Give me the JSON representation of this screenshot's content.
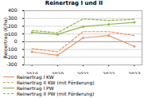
{
  "chart_data": {
    "type": "line",
    "title": "Reinertrag I und II",
    "ylabel": "Reinertrag (€/ha)",
    "x": [
      2019,
      2020,
      2021,
      2022,
      2023
    ],
    "series": [
      {
        "name": "Reinertrag I KW",
        "color": "#e8956a",
        "values": [
          -130,
          -175,
          50,
          80,
          -60
        ],
        "line_style": "solid",
        "marker": "circle"
      },
      {
        "name": "Reinertrag II KW (mit Förderung)",
        "color": "#e8956a",
        "values": [
          -90,
          -130,
          130,
          130,
          80
        ],
        "line_style": "dashed"
      },
      {
        "name": "Reinertrag I PW",
        "color": "#8db84a",
        "values": [
          120,
          95,
          195,
          225,
          250
        ],
        "line_style": "solid",
        "marker": "circle"
      },
      {
        "name": "Reinertrag II PW (mit Förderung)",
        "color": "#8db84a",
        "values": [
          145,
          115,
          295,
          275,
          290
        ],
        "line_style": "dashed"
      }
    ],
    "xlim": [
      2018.7,
      2023.3
    ],
    "xticks": [
      2019,
      2020,
      2021,
      2022,
      2023
    ],
    "ylim": [
      -300,
      400
    ],
    "yticks": [
      -300,
      -200,
      -100,
      0,
      100,
      200,
      300,
      400
    ],
    "grid": true,
    "legend": "bottom"
  }
}
